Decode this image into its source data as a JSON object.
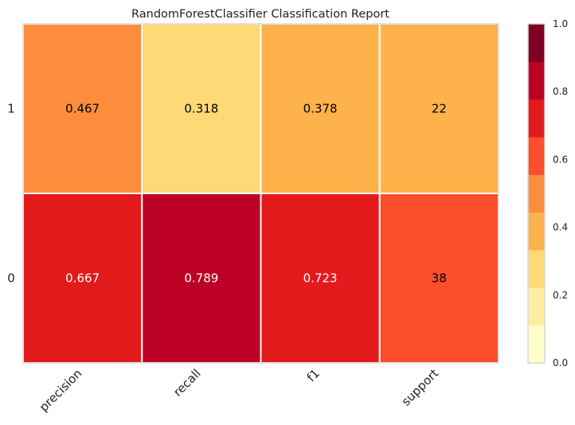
{
  "chart_data": {
    "type": "heatmap",
    "title": "RandomForestClassifier Classification Report",
    "columns": [
      "precision",
      "recall",
      "f1",
      "support"
    ],
    "rows": [
      "1",
      "0"
    ],
    "values": [
      [
        "0.467",
        "0.318",
        "0.378",
        "22"
      ],
      [
        "0.667",
        "0.789",
        "0.723",
        "38"
      ]
    ],
    "cell_colors": [
      [
        "#fd8d3c",
        "#fed976",
        "#feb24c",
        "#feb24c"
      ],
      [
        "#e31a1c",
        "#bd0026",
        "#e31a1c",
        "#fc4e2a"
      ]
    ],
    "text_colors": [
      [
        "#000000",
        "#000000",
        "#000000",
        "#000000"
      ],
      [
        "#ffffff",
        "#ffffff",
        "#ffffff",
        "#000000"
      ]
    ],
    "colorbar": {
      "range": [
        0.0,
        1.0
      ],
      "ticks": [
        "0.0",
        "0.2",
        "0.4",
        "0.6",
        "0.8",
        "1.0"
      ],
      "colors": [
        "#ffffcc",
        "#ffeda0",
        "#fed976",
        "#feb24c",
        "#fd8d3c",
        "#fc4e2a",
        "#e31a1c",
        "#bd0026",
        "#800026"
      ]
    },
    "grid": false
  }
}
